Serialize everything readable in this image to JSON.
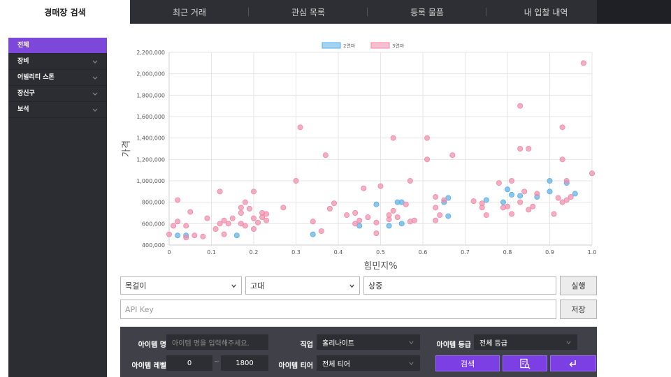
{
  "tabs": [
    "경매장 검색",
    "최근 거래",
    "관심 목록",
    "등록 물품",
    "내 입찰 내역"
  ],
  "sidebar": {
    "items": [
      {
        "label": "전체",
        "active": true
      },
      {
        "label": "장비"
      },
      {
        "label": "어빌리티 스톤"
      },
      {
        "label": "장신구"
      },
      {
        "label": "보석"
      }
    ]
  },
  "chart_data": {
    "type": "scatter",
    "xlabel": "힘민지%",
    "ylabel": "가격",
    "xlim": [
      0,
      1
    ],
    "ylim": [
      400000,
      2200000
    ],
    "x_ticks": [
      "0",
      "0.1",
      "0.2",
      "0.3",
      "0.4",
      "0.5",
      "0.6",
      "0.7",
      "0.8",
      "0.9",
      "1.0"
    ],
    "y_ticks": [
      "400,000",
      "600,000",
      "800,000",
      "1,000,000",
      "1,200,000",
      "1,400,000",
      "1,600,000",
      "1,800,000",
      "2,000,000",
      "2,200,000"
    ],
    "grid": true,
    "legend_position": "top",
    "series": [
      {
        "name": "2연마",
        "color": "#5aaee6",
        "points": [
          [
            0.02,
            490000
          ],
          [
            0.04,
            490000
          ],
          [
            0.16,
            490000
          ],
          [
            0.34,
            500000
          ],
          [
            0.45,
            580000
          ],
          [
            0.49,
            780000
          ],
          [
            0.52,
            580000
          ],
          [
            0.54,
            800000
          ],
          [
            0.55,
            800000
          ],
          [
            0.55,
            600000
          ],
          [
            0.65,
            800000
          ],
          [
            0.66,
            840000
          ],
          [
            0.66,
            670000
          ],
          [
            0.75,
            820000
          ],
          [
            0.79,
            800000
          ],
          [
            0.8,
            920000
          ],
          [
            0.81,
            870000
          ],
          [
            0.83,
            860000
          ],
          [
            0.87,
            850000
          ],
          [
            0.9,
            1000000
          ],
          [
            0.9,
            900000
          ],
          [
            0.94,
            980000
          ],
          [
            0.96,
            880000
          ]
        ]
      },
      {
        "name": "3연마",
        "color": "#f08aa8",
        "points": [
          [
            0,
            500000
          ],
          [
            0.01,
            580000
          ],
          [
            0.02,
            620000
          ],
          [
            0.02,
            820000
          ],
          [
            0.04,
            470000
          ],
          [
            0.04,
            580000
          ],
          [
            0.05,
            710000
          ],
          [
            0.06,
            490000
          ],
          [
            0.08,
            480000
          ],
          [
            0.09,
            650000
          ],
          [
            0.11,
            550000
          ],
          [
            0.12,
            600000
          ],
          [
            0.12,
            900000
          ],
          [
            0.13,
            500000
          ],
          [
            0.13,
            630000
          ],
          [
            0.14,
            600000
          ],
          [
            0.15,
            650000
          ],
          [
            0.17,
            600000
          ],
          [
            0.17,
            700000
          ],
          [
            0.17,
            750000
          ],
          [
            0.18,
            580000
          ],
          [
            0.18,
            800000
          ],
          [
            0.19,
            740000
          ],
          [
            0.2,
            550000
          ],
          [
            0.2,
            650000
          ],
          [
            0.2,
            900000
          ],
          [
            0.21,
            610000
          ],
          [
            0.22,
            660000
          ],
          [
            0.22,
            700000
          ],
          [
            0.23,
            630000
          ],
          [
            0.23,
            690000
          ],
          [
            0.27,
            750000
          ],
          [
            0.3,
            1000000
          ],
          [
            0.31,
            1500000
          ],
          [
            0.34,
            620000
          ],
          [
            0.36,
            530000
          ],
          [
            0.37,
            1240000
          ],
          [
            0.38,
            740000
          ],
          [
            0.39,
            790000
          ],
          [
            0.42,
            680000
          ],
          [
            0.44,
            600000
          ],
          [
            0.44,
            700000
          ],
          [
            0.45,
            630000
          ],
          [
            0.46,
            930000
          ],
          [
            0.47,
            660000
          ],
          [
            0.49,
            610000
          ],
          [
            0.49,
            510000
          ],
          [
            0.5,
            950000
          ],
          [
            0.52,
            640000
          ],
          [
            0.52,
            680000
          ],
          [
            0.53,
            720000
          ],
          [
            0.53,
            1400000
          ],
          [
            0.54,
            660000
          ],
          [
            0.56,
            780000
          ],
          [
            0.57,
            1000000
          ],
          [
            0.57,
            620000
          ],
          [
            0.58,
            630000
          ],
          [
            0.61,
            1400000
          ],
          [
            0.61,
            1200000
          ],
          [
            0.63,
            630000
          ],
          [
            0.63,
            750000
          ],
          [
            0.63,
            850000
          ],
          [
            0.64,
            680000
          ],
          [
            0.65,
            820000
          ],
          [
            0.67,
            1240000
          ],
          [
            0.72,
            810000
          ],
          [
            0.74,
            750000
          ],
          [
            0.74,
            790000
          ],
          [
            0.75,
            680000
          ],
          [
            0.78,
            980000
          ],
          [
            0.79,
            750000
          ],
          [
            0.8,
            760000
          ],
          [
            0.81,
            1000000
          ],
          [
            0.81,
            690000
          ],
          [
            0.83,
            1700000
          ],
          [
            0.83,
            1300000
          ],
          [
            0.83,
            800000
          ],
          [
            0.84,
            900000
          ],
          [
            0.85,
            730000
          ],
          [
            0.85,
            1300000
          ],
          [
            0.86,
            760000
          ],
          [
            0.87,
            880000
          ],
          [
            0.91,
            690000
          ],
          [
            0.92,
            840000
          ],
          [
            0.93,
            800000
          ],
          [
            0.93,
            1500000
          ],
          [
            0.93,
            1200000
          ],
          [
            0.94,
            820000
          ],
          [
            0.94,
            1000000
          ],
          [
            0.95,
            850000
          ],
          [
            0.98,
            2100000
          ],
          [
            1.0,
            1070000
          ]
        ]
      }
    ]
  },
  "filters": {
    "select1": "목걸이",
    "select2": "고대",
    "effect": "상중",
    "run_label": "실행",
    "api_placeholder": "API Key",
    "save_label": "저장"
  },
  "search_panel": {
    "item_name_label": "아이템 명",
    "item_name_placeholder": "아이템 명을 입력해주세요.",
    "job_label": "직업",
    "job_value": "홀리나이트",
    "grade_label": "아이템 등급",
    "grade_value": "전체 등급",
    "level_label": "아이템 레벨",
    "level_min": "0",
    "level_sep": "~",
    "level_max": "1800",
    "tier_label": "아이템 티어",
    "tier_value": "전체 티어",
    "search_label": "검색"
  },
  "colors": {
    "accent": "#7b3fe4",
    "series_blue": "#5aaee6",
    "series_pink": "#f08aa8"
  }
}
